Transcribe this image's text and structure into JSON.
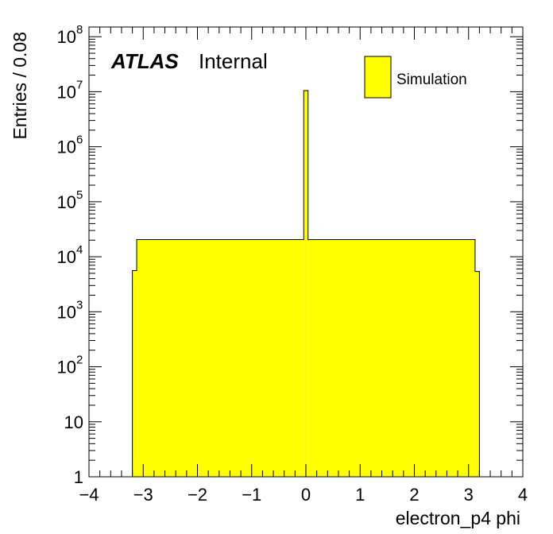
{
  "chart_data": {
    "type": "bar",
    "subtype": "histogram",
    "xlabel": "electron_p4 phi",
    "ylabel": "Entries / 0.08",
    "xlim": [
      -4,
      4
    ],
    "ylim": [
      1,
      150000000
    ],
    "y_scale": "log",
    "bin_width": 0.08,
    "x_ticks": [
      {
        "value": -4,
        "label": "−4"
      },
      {
        "value": -3,
        "label": "−3"
      },
      {
        "value": -2,
        "label": "−2"
      },
      {
        "value": -1,
        "label": "−1"
      },
      {
        "value": 0,
        "label": "0"
      },
      {
        "value": 1,
        "label": "1"
      },
      {
        "value": 2,
        "label": "2"
      },
      {
        "value": 3,
        "label": "3"
      },
      {
        "value": 4,
        "label": "4"
      }
    ],
    "y_ticks": [
      {
        "value": 1,
        "base": "1",
        "exp": ""
      },
      {
        "value": 10,
        "base": "10",
        "exp": ""
      },
      {
        "value": 100,
        "base": "10",
        "exp": "2"
      },
      {
        "value": 1000,
        "base": "10",
        "exp": "3"
      },
      {
        "value": 10000,
        "base": "10",
        "exp": "4"
      },
      {
        "value": 100000,
        "base": "10",
        "exp": "5"
      },
      {
        "value": 1000000,
        "base": "10",
        "exp": "6"
      },
      {
        "value": 10000000,
        "base": "10",
        "exp": "7"
      },
      {
        "value": 100000000,
        "base": "10",
        "exp": "8"
      }
    ],
    "series": [
      {
        "name": "Simulation",
        "color": "#ffff00",
        "edge_color": "#000000",
        "bins": [
          {
            "x0": -3.2,
            "x1": -3.12,
            "y": 5600
          },
          {
            "x0": -3.12,
            "x1": -0.04,
            "y": 20500
          },
          {
            "x0": -0.04,
            "x1": 0.04,
            "y": 10500000
          },
          {
            "x0": 0.04,
            "x1": 3.12,
            "y": 20500
          },
          {
            "x0": 3.12,
            "x1": 3.2,
            "y": 5400
          }
        ]
      }
    ],
    "grid": false,
    "legend": {
      "position": "top-right"
    },
    "annotation": {
      "bold": "ATLAS",
      "text": "Internal"
    }
  }
}
